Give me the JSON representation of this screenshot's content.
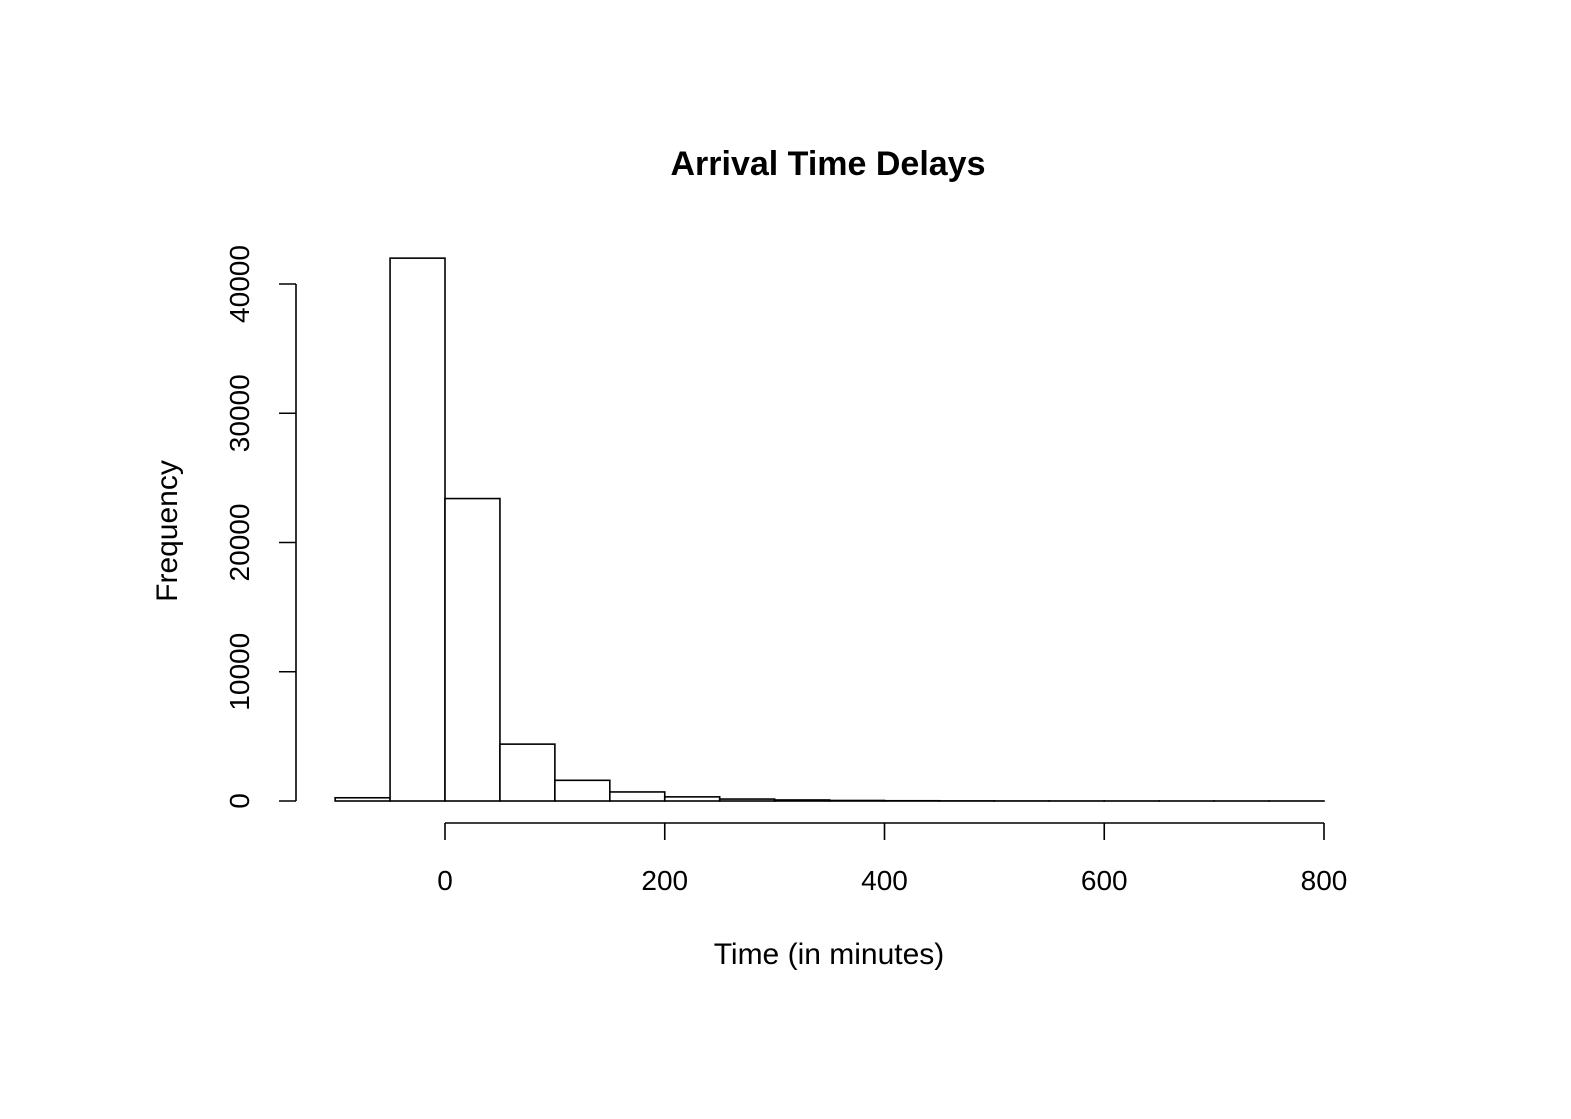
{
  "chart_data": {
    "type": "bar",
    "title": "Arrival Time Delays",
    "xlabel": "Time (in minutes)",
    "ylabel": "Frequency",
    "bins": [
      {
        "start": -100,
        "end": -50,
        "count": 250
      },
      {
        "start": -50,
        "end": 0,
        "count": 42000
      },
      {
        "start": 0,
        "end": 50,
        "count": 23400
      },
      {
        "start": 50,
        "end": 100,
        "count": 4400
      },
      {
        "start": 100,
        "end": 150,
        "count": 1600
      },
      {
        "start": 150,
        "end": 200,
        "count": 700
      },
      {
        "start": 200,
        "end": 250,
        "count": 320
      },
      {
        "start": 250,
        "end": 300,
        "count": 150
      },
      {
        "start": 300,
        "end": 350,
        "count": 80
      },
      {
        "start": 350,
        "end": 400,
        "count": 40
      },
      {
        "start": 400,
        "end": 450,
        "count": 20
      },
      {
        "start": 450,
        "end": 500,
        "count": 10
      },
      {
        "start": 500,
        "end": 550,
        "count": 5
      },
      {
        "start": 550,
        "end": 600,
        "count": 3
      },
      {
        "start": 600,
        "end": 650,
        "count": 2
      },
      {
        "start": 650,
        "end": 700,
        "count": 1
      },
      {
        "start": 700,
        "end": 750,
        "count": 1
      },
      {
        "start": 750,
        "end": 800,
        "count": 1
      }
    ],
    "x_ticks": [
      0,
      200,
      400,
      600,
      800
    ],
    "x_tick_labels": [
      "0",
      "200",
      "400",
      "600",
      "800"
    ],
    "y_ticks": [
      0,
      10000,
      20000,
      30000,
      40000
    ],
    "y_tick_labels": [
      "0",
      "10000",
      "20000",
      "30000",
      "40000"
    ],
    "xlim": [
      -100,
      800
    ],
    "ylim": [
      0,
      42000
    ],
    "grid": false,
    "legend": "none",
    "colors": {
      "bar_fill": "#ffffff",
      "bar_stroke": "#000000",
      "axis": "#000000",
      "background": "#ffffff"
    }
  }
}
